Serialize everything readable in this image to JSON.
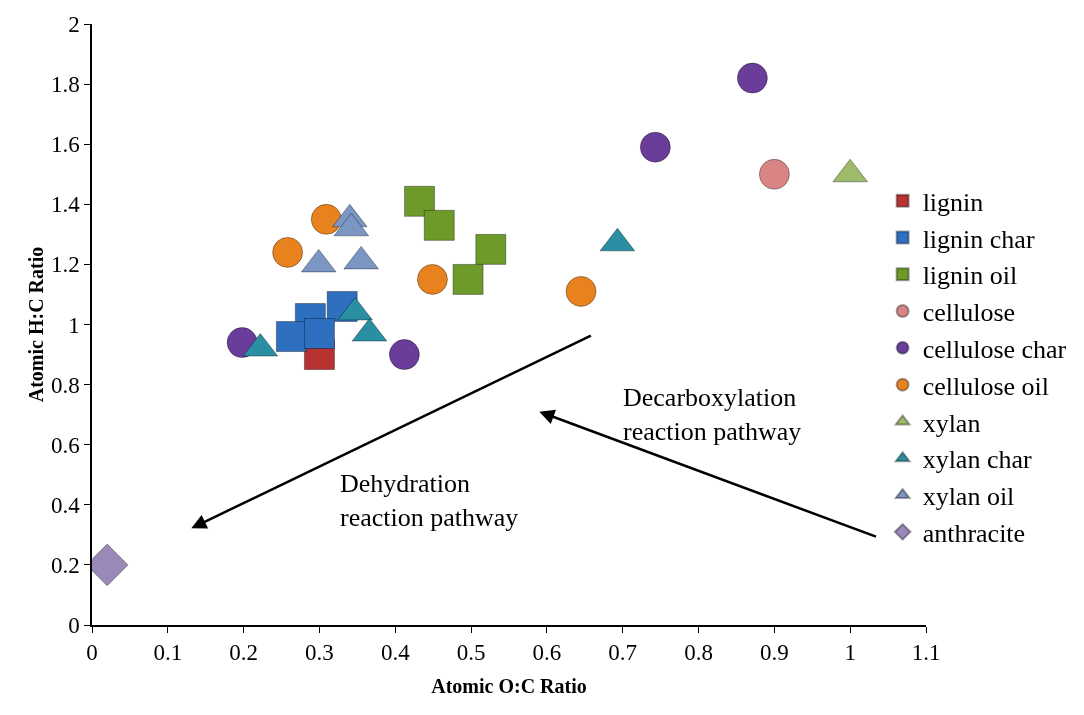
{
  "chart_data": {
    "type": "scatter",
    "xlabel": "Atomic O:C Ratio",
    "ylabel": "Atomic H:C Ratio",
    "xlim": [
      0,
      1.1
    ],
    "xticks": [
      0,
      0.1,
      0.2,
      0.3,
      0.4,
      0.5,
      0.6,
      0.7,
      0.8,
      0.9,
      1,
      1.1
    ],
    "ylim": [
      0,
      2
    ],
    "yticks": [
      0,
      0.2,
      0.4,
      0.6,
      0.8,
      1,
      1.2,
      1.4,
      1.6,
      1.8,
      2
    ],
    "grid": false,
    "legend": "right",
    "annotations": [
      "Decarboxylation\nreaction pathway",
      "Dehydration\nreaction pathway"
    ],
    "series": [
      {
        "name": "lignin",
        "color": "#b83232",
        "marker": "square",
        "x": [
          0.3
        ],
        "values": [
          0.9
        ]
      },
      {
        "name": "lignin char",
        "color": "#2e6fc0",
        "marker": "square",
        "x": [
          0.288,
          0.33,
          0.263,
          0.3
        ],
        "values": [
          1.02,
          1.06,
          0.96,
          0.97
        ]
      },
      {
        "name": "lignin oil",
        "color": "#6e9a2a",
        "marker": "square",
        "x": [
          0.432,
          0.458,
          0.526,
          0.496
        ],
        "values": [
          1.41,
          1.33,
          1.25,
          1.15
        ]
      },
      {
        "name": "cellulose",
        "color": "#d98585",
        "marker": "circle",
        "x": [
          0.9
        ],
        "values": [
          1.5
        ]
      },
      {
        "name": "cellulose char",
        "color": "#6a3d9a",
        "marker": "circle",
        "x": [
          0.871,
          0.743,
          0.198,
          0.412
        ],
        "values": [
          1.82,
          1.59,
          0.94,
          0.9
        ]
      },
      {
        "name": "cellulose oil",
        "color": "#e8821e",
        "marker": "circle",
        "x": [
          0.309,
          0.258,
          0.449,
          0.645
        ],
        "values": [
          1.35,
          1.24,
          1.15,
          1.11
        ]
      },
      {
        "name": "xylan",
        "color": "#9dbb6a",
        "marker": "triangle",
        "x": [
          1.0
        ],
        "values": [
          1.5
        ]
      },
      {
        "name": "xylan char",
        "color": "#2a8fa3",
        "marker": "triangle",
        "x": [
          0.693,
          0.222,
          0.347,
          0.366
        ],
        "values": [
          1.27,
          0.92,
          1.04,
          0.97
        ]
      },
      {
        "name": "xylan oil",
        "color": "#7c96c4",
        "marker": "triangle",
        "x": [
          0.34,
          0.342,
          0.299,
          0.355
        ],
        "values": [
          1.35,
          1.32,
          1.2,
          1.21
        ]
      },
      {
        "name": "anthracite",
        "color": "#9a88b8",
        "marker": "diamond",
        "x": [
          0.02
        ],
        "values": [
          0.2
        ]
      }
    ]
  }
}
